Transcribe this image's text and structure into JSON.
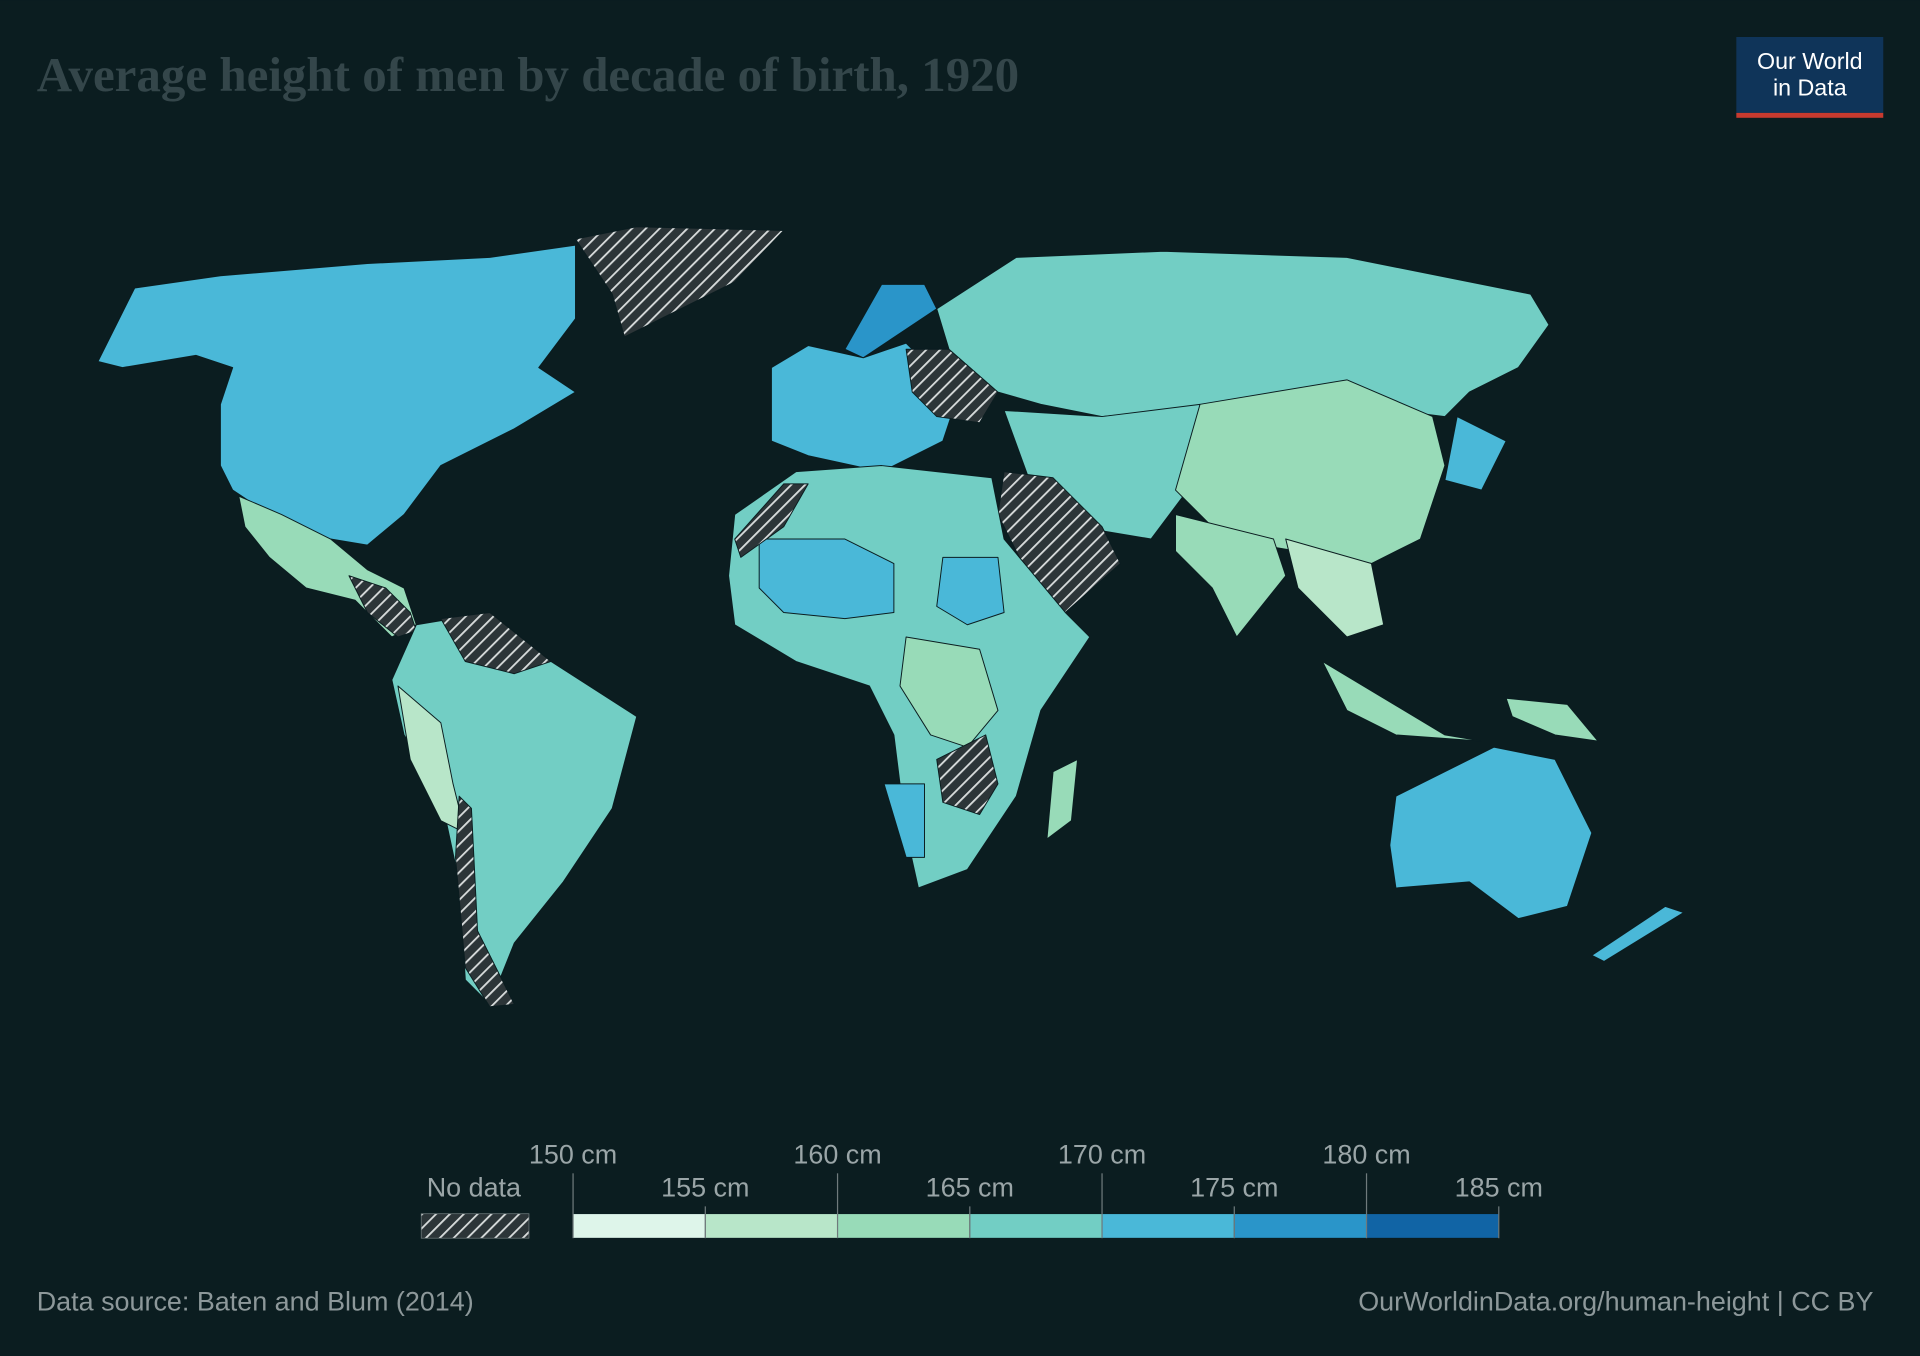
{
  "title": "Average height of men by decade of birth, 1920",
  "logo": {
    "line1": "Our World",
    "line2": "in Data"
  },
  "legend": {
    "no_data_label": "No data",
    "ticks": [
      {
        "value": 150,
        "label": "150 cm"
      },
      {
        "value": 155,
        "label": "155 cm"
      },
      {
        "value": 160,
        "label": "160 cm"
      },
      {
        "value": 165,
        "label": "165 cm"
      },
      {
        "value": 170,
        "label": "170 cm"
      },
      {
        "value": 175,
        "label": "175 cm"
      },
      {
        "value": 180,
        "label": "180 cm"
      },
      {
        "value": 185,
        "label": "185 cm"
      }
    ],
    "colors": [
      "#def5ea",
      "#b8e6c9",
      "#98dbb8",
      "#72cec4",
      "#4ab8d8",
      "#2a95c9",
      "#1164a5"
    ]
  },
  "footer": {
    "source": "Data source: Baten and Blum (2014)",
    "url": "OurWorldinData.org/human-height | CC BY"
  }
}
